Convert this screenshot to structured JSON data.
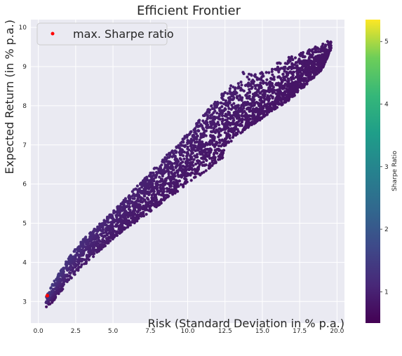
{
  "chart_data": {
    "type": "scatter",
    "title": "Efficient Frontier",
    "xlabel": "Risk (Standard Deviation in % p.a.)",
    "ylabel": "Expected Return (in % p.a.)",
    "xlim": [
      -0.5,
      20.5
    ],
    "ylim": [
      2.45,
      10.2
    ],
    "xticks": [
      "0.0",
      "2.5",
      "5.0",
      "7.5",
      "10.0",
      "12.5",
      "15.0",
      "17.5",
      "20.0"
    ],
    "yticks": [
      "3",
      "4",
      "5",
      "6",
      "7",
      "8",
      "9",
      "10"
    ],
    "grid": true,
    "legend": {
      "placement": "top-left",
      "entries": [
        {
          "label": "max. Sharpe ratio",
          "color": "#ff0000"
        }
      ]
    },
    "highlight_point": {
      "label": "max. Sharpe ratio",
      "x": 0.6,
      "y": 3.15,
      "color": "#ff0000"
    },
    "colorbar": {
      "label": "Sharpe Ratio",
      "range": [
        0.5,
        5.35
      ],
      "ticks": [
        "1",
        "2",
        "3",
        "4",
        "5"
      ],
      "colormap": "viridis"
    },
    "frontier_upper": [
      [
        0.5,
        3.1
      ],
      [
        1,
        3.5
      ],
      [
        2,
        4.1
      ],
      [
        3,
        4.6
      ],
      [
        5,
        5.3
      ],
      [
        7.5,
        6.3
      ],
      [
        10,
        7.3
      ],
      [
        12.5,
        8.4
      ],
      [
        13.5,
        8.85
      ],
      [
        15,
        8.95
      ],
      [
        17,
        9.3
      ],
      [
        19,
        9.6
      ],
      [
        19.6,
        9.75
      ]
    ],
    "frontier_lower": [
      [
        0.5,
        2.85
      ],
      [
        1,
        3.0
      ],
      [
        2,
        3.5
      ],
      [
        3,
        3.9
      ],
      [
        5,
        4.6
      ],
      [
        7.5,
        5.3
      ],
      [
        10,
        6.0
      ],
      [
        12,
        6.55
      ],
      [
        13.5,
        7.0
      ],
      [
        15,
        7.45
      ],
      [
        17,
        8.0
      ],
      [
        19,
        8.8
      ],
      [
        19.6,
        9.4
      ]
    ],
    "background": "#eaeaf2"
  }
}
